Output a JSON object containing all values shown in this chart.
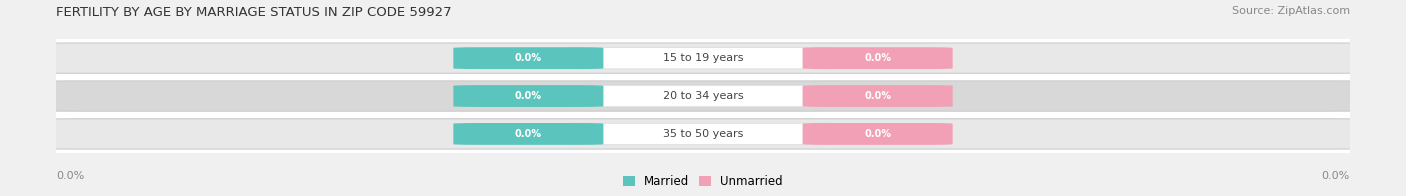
{
  "title": "FERTILITY BY AGE BY MARRIAGE STATUS IN ZIP CODE 59927",
  "source": "Source: ZipAtlas.com",
  "age_groups": [
    "15 to 19 years",
    "20 to 34 years",
    "35 to 50 years"
  ],
  "married_values": [
    0.0,
    0.0,
    0.0
  ],
  "unmarried_values": [
    0.0,
    0.0,
    0.0
  ],
  "married_color": "#5bc4bc",
  "unmarried_color": "#f2a0b5",
  "title_fontsize": 9.5,
  "source_fontsize": 8,
  "axis_label_left": "0.0%",
  "axis_label_right": "0.0%",
  "background_color": "#f0f0f0",
  "figure_bg_color": "#ffffff",
  "row_colors": [
    "#e8e8e8",
    "#d8d8d8",
    "#e8e8e8"
  ],
  "row_edge_color": "#cccccc",
  "center_box_color": "#ffffff",
  "center_box_edge": "#dddddd",
  "value_text_color": "#ffffff",
  "label_text_color": "#444444",
  "axis_text_color": "#888888",
  "title_color": "#333333",
  "source_color": "#888888"
}
